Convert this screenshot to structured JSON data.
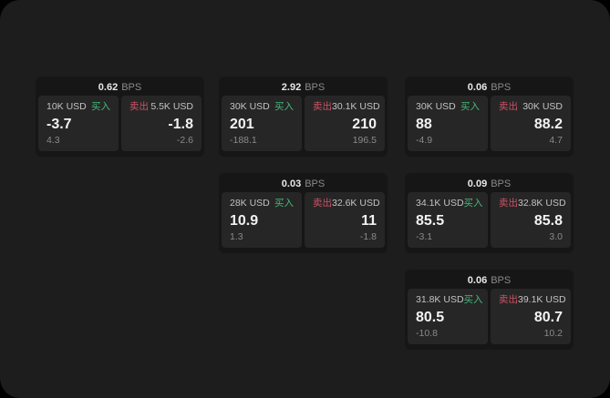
{
  "labels": {
    "bps_unit": "BPS",
    "buy": "买入",
    "sell": "卖出"
  },
  "colors": {
    "window_background": "#1d1d1d",
    "card_background": "#161616",
    "panel_background": "#262626",
    "buy_green": "#45b878",
    "sell_red": "#cc5266",
    "value_white": "#f2f2f2",
    "muted_gray": "#8a8a8a"
  },
  "cards": [
    {
      "bps": "0.62",
      "buy": {
        "amount": "10K USD",
        "price": "-3.7",
        "delta": "4.3"
      },
      "sell": {
        "amount": "5.5K USD",
        "price": "-1.8",
        "delta": "-2.6"
      }
    },
    {
      "bps": "2.92",
      "buy": {
        "amount": "30K USD",
        "price": "201",
        "delta": "-188.1"
      },
      "sell": {
        "amount": "30.1K USD",
        "price": "210",
        "delta": "196.5"
      }
    },
    {
      "bps": "0.06",
      "buy": {
        "amount": "30K USD",
        "price": "88",
        "delta": "-4.9"
      },
      "sell": {
        "amount": "30K USD",
        "price": "88.2",
        "delta": "4.7"
      }
    },
    {
      "bps": "0.03",
      "buy": {
        "amount": "28K USD",
        "price": "10.9",
        "delta": "1.3"
      },
      "sell": {
        "amount": "32.6K USD",
        "price": "11",
        "delta": "-1.8"
      }
    },
    {
      "bps": "0.09",
      "buy": {
        "amount": "34.1K USD",
        "price": "85.5",
        "delta": "-3.1"
      },
      "sell": {
        "amount": "32.8K USD",
        "price": "85.8",
        "delta": "3.0"
      }
    },
    {
      "bps": "0.06",
      "buy": {
        "amount": "31.8K USD",
        "price": "80.5",
        "delta": "-10.8"
      },
      "sell": {
        "amount": "39.1K USD",
        "price": "80.7",
        "delta": "10.2"
      }
    }
  ]
}
